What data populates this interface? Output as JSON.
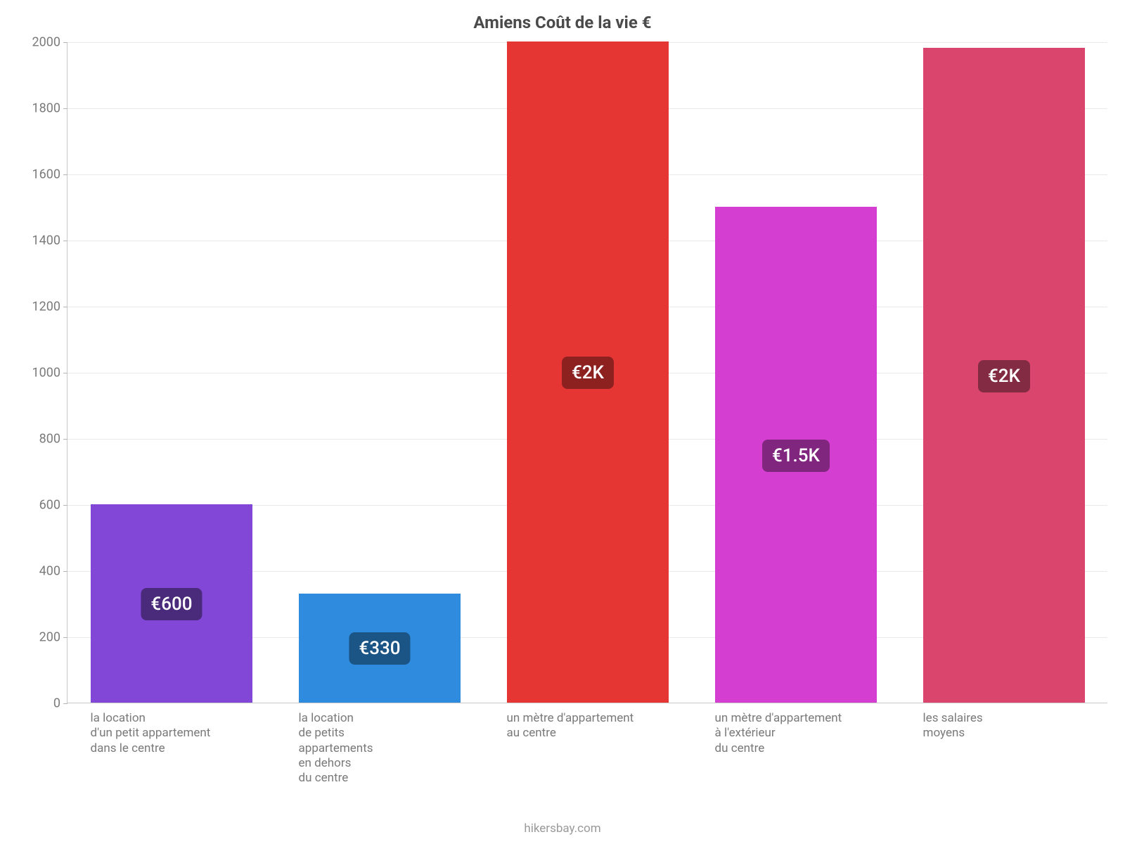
{
  "chart": {
    "type": "bar",
    "title": "Amiens Coût de la vie €",
    "title_fontsize": 24,
    "title_fontweight": 700,
    "title_color": "#4a4a4a",
    "background_color": "#ffffff",
    "grid_color": "#e9e9e9",
    "axis_color": "#c9c9c9",
    "tick_color": "#7a7a7a",
    "tick_fontsize": 18,
    "label_fontsize": 17,
    "value_label_fontsize": 26,
    "ylim": [
      0,
      2000
    ],
    "ytick_step": 200,
    "yticks": [
      0,
      200,
      400,
      600,
      800,
      1000,
      1200,
      1400,
      1600,
      1800,
      2000
    ],
    "bar_width": 0.78,
    "footer": "hikersbay.com",
    "footer_fontsize": 17,
    "footer_color": "#9a9a9a",
    "bars": [
      {
        "category_lines": [
          "la location",
          "d'un petit appartement",
          "dans le centre"
        ],
        "value": 600,
        "value_label": "€600",
        "color": "#8247d6",
        "badge_color": "#4a2a7a"
      },
      {
        "category_lines": [
          "la location",
          "de petits",
          "appartements",
          "en dehors",
          "du centre"
        ],
        "value": 330,
        "value_label": "€330",
        "color": "#2f8bdd",
        "badge_color": "#1b5585"
      },
      {
        "category_lines": [
          "un mètre d'appartement",
          "au centre"
        ],
        "value": 2000,
        "value_label": "€2K",
        "color": "#e53633",
        "badge_color": "#8c2120"
      },
      {
        "category_lines": [
          "un mètre d'appartement",
          "à l'extérieur",
          "du centre"
        ],
        "value": 1500,
        "value_label": "€1.5K",
        "color": "#d53fd1",
        "badge_color": "#81267f"
      },
      {
        "category_lines": [
          "les salaires",
          "moyens"
        ],
        "value": 1980,
        "value_label": "€2K",
        "color": "#d9456c",
        "badge_color": "#832b42"
      }
    ]
  }
}
